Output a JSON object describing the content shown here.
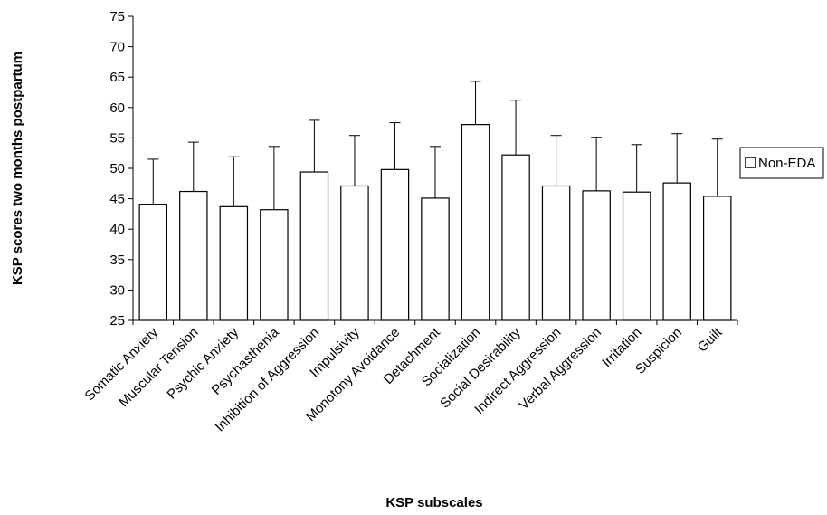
{
  "chart_data": {
    "type": "bar",
    "xlabel": "KSP subscales",
    "ylabel": "KSP scores two months postpartum",
    "categories": [
      "Somatic Anxiety",
      "Muscular Tension",
      "Psychic Anxiety",
      "Psychasthenia",
      "Inhibition of Aggression",
      "Impulsivity",
      "Monotony Avoidance",
      "Detachment",
      "Socialization",
      "Social Desirability",
      "Indirect Aggression",
      "Verbal Aggression",
      "Irritation",
      "Suspicion",
      "Guilt"
    ],
    "series": [
      {
        "name": "Non-EDA",
        "color": "#ffffff",
        "values": [
          44.1,
          46.2,
          43.7,
          43.2,
          49.4,
          47.1,
          49.8,
          45.1,
          57.2,
          52.2,
          47.1,
          46.3,
          46.1,
          47.6,
          45.4
        ],
        "errors": [
          7.4,
          8.1,
          8.2,
          10.4,
          8.5,
          8.3,
          7.7,
          8.5,
          7.1,
          9.0,
          8.3,
          8.8,
          7.8,
          8.1,
          9.4
        ]
      }
    ],
    "ylim": [
      25,
      75
    ],
    "yticks": [
      25,
      30,
      35,
      40,
      45,
      50,
      55,
      60,
      65,
      70,
      75
    ],
    "grid": false,
    "legend": "right"
  }
}
